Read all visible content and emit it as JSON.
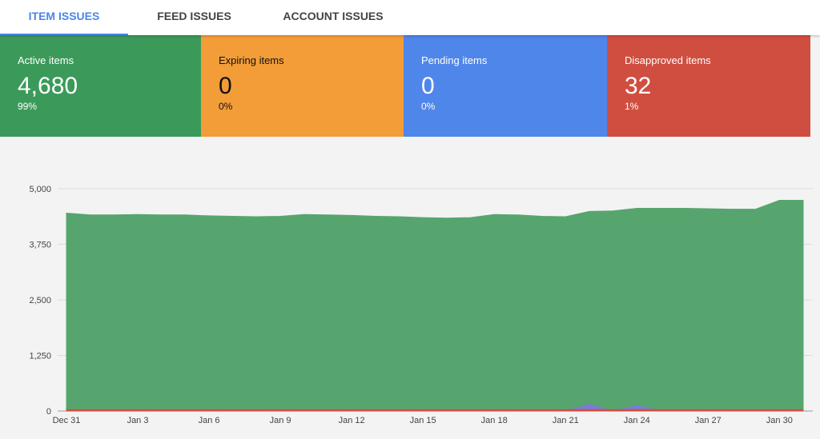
{
  "tabs": [
    {
      "label": "ITEM ISSUES",
      "active": true
    },
    {
      "label": "FEED ISSUES",
      "active": false
    },
    {
      "label": "ACCOUNT ISSUES",
      "active": false
    }
  ],
  "summary": [
    {
      "label": "Active items",
      "value": "4,680",
      "percent": "99%",
      "color": "#3b9a5a"
    },
    {
      "label": "Expiring items",
      "value": "0",
      "percent": "0%",
      "color": "#f29d38"
    },
    {
      "label": "Pending items",
      "value": "0",
      "percent": "0%",
      "color": "#4f86ea"
    },
    {
      "label": "Disapproved items",
      "value": "32",
      "percent": "1%",
      "color": "#d04e40"
    }
  ],
  "chart_data": {
    "type": "area",
    "x_ticks": [
      "Dec 31",
      "Jan 3",
      "Jan 6",
      "Jan 9",
      "Jan 12",
      "Jan 15",
      "Jan 18",
      "Jan 21",
      "Jan 24",
      "Jan 27",
      "Jan 30"
    ],
    "y_ticks": [
      "0",
      "1,250",
      "2,500",
      "3,750",
      "5,000"
    ],
    "ylim": [
      0,
      5000
    ],
    "x": [
      "Dec 31",
      "Jan 1",
      "Jan 2",
      "Jan 3",
      "Jan 4",
      "Jan 5",
      "Jan 6",
      "Jan 7",
      "Jan 8",
      "Jan 9",
      "Jan 10",
      "Jan 11",
      "Jan 12",
      "Jan 13",
      "Jan 14",
      "Jan 15",
      "Jan 16",
      "Jan 17",
      "Jan 18",
      "Jan 19",
      "Jan 20",
      "Jan 21",
      "Jan 22",
      "Jan 23",
      "Jan 24",
      "Jan 25",
      "Jan 26",
      "Jan 27",
      "Jan 28",
      "Jan 29",
      "Jan 30",
      "Jan 31"
    ],
    "series": [
      {
        "name": "Active items",
        "color": "#57a56e",
        "values": [
          4450,
          4410,
          4410,
          4420,
          4410,
          4410,
          4390,
          4380,
          4370,
          4380,
          4420,
          4410,
          4400,
          4380,
          4370,
          4350,
          4340,
          4350,
          4420,
          4410,
          4380,
          4370,
          4490,
          4500,
          4560,
          4560,
          4560,
          4550,
          4540,
          4540,
          4740,
          4740
        ]
      },
      {
        "name": "Expiring items",
        "color": "#f29d38",
        "values": [
          0,
          0,
          0,
          0,
          0,
          0,
          0,
          0,
          0,
          0,
          0,
          0,
          0,
          0,
          0,
          0,
          0,
          0,
          0,
          0,
          0,
          0,
          0,
          0,
          0,
          0,
          0,
          0,
          0,
          0,
          0,
          0
        ]
      },
      {
        "name": "Pending items",
        "color": "#7b7bd6",
        "values": [
          0,
          0,
          0,
          0,
          0,
          0,
          0,
          0,
          0,
          0,
          0,
          0,
          0,
          0,
          0,
          0,
          0,
          0,
          0,
          0,
          0,
          0,
          150,
          0,
          120,
          0,
          0,
          0,
          0,
          0,
          0,
          0
        ]
      },
      {
        "name": "Disapproved items",
        "color": "#d04e40",
        "values": [
          32,
          32,
          32,
          32,
          32,
          32,
          32,
          32,
          32,
          32,
          32,
          32,
          32,
          32,
          32,
          32,
          32,
          32,
          32,
          32,
          32,
          32,
          32,
          32,
          32,
          32,
          32,
          32,
          32,
          32,
          32,
          32
        ]
      }
    ],
    "grid": true
  }
}
